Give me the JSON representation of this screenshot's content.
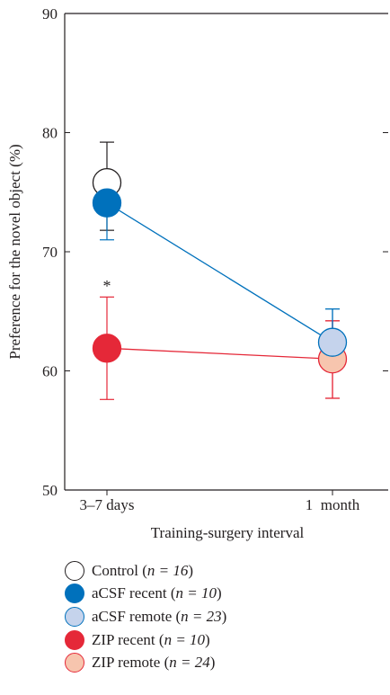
{
  "chart_data": {
    "type": "line",
    "xlabel": "Training-surgery interval",
    "ylabel": "Preference for the novel object (%)",
    "categories": [
      "3–7 days",
      "1  month"
    ],
    "ylim": [
      50,
      90
    ],
    "yticks": [
      50,
      60,
      70,
      80,
      90
    ],
    "annotation": "*",
    "series": [
      {
        "name": "Control",
        "n_label": "n = 16",
        "fill": "#ffffff",
        "stroke": "#231f20",
        "line": false,
        "values": [
          75.8,
          null
        ],
        "err_upper": [
          79.2,
          null
        ],
        "err_lower": [
          71.8,
          null
        ]
      },
      {
        "name": "aCSF recent",
        "n_label": "n = 10",
        "fill": "#0071bc",
        "stroke": "#0071bc",
        "line": true,
        "values": [
          74.1,
          62.4
        ],
        "err_upper": [
          76.3,
          65.2
        ],
        "err_lower": [
          71.0,
          60.0
        ]
      },
      {
        "name": "aCSF remote",
        "n_label": "n = 23",
        "fill": "#c5d3ec",
        "stroke": "#0071bc",
        "line": false,
        "values": [
          null,
          62.4
        ],
        "err_upper": [
          null,
          65.2
        ],
        "err_lower": [
          null,
          60.0
        ]
      },
      {
        "name": "ZIP recent",
        "n_label": "n = 10",
        "fill": "#e52838",
        "stroke": "#e52838",
        "line": true,
        "values": [
          61.9,
          61.0
        ],
        "err_upper": [
          66.2,
          64.2
        ],
        "err_lower": [
          57.6,
          57.7
        ]
      },
      {
        "name": "ZIP remote",
        "n_label": "n = 24",
        "fill": "#f7c5ae",
        "stroke": "#e52838",
        "line": false,
        "values": [
          null,
          61.0
        ],
        "err_upper": [
          null,
          64.2
        ],
        "err_lower": [
          null,
          57.7
        ]
      }
    ]
  },
  "legend": {
    "items": [
      {
        "name": "Control",
        "n_label": "n = 16"
      },
      {
        "name": "aCSF recent",
        "n_label": "n = 10"
      },
      {
        "name": "aCSF remote",
        "n_label": "n = 23"
      },
      {
        "name": "ZIP recent",
        "n_label": "n = 10"
      },
      {
        "name": "ZIP remote",
        "n_label": "n = 24"
      }
    ]
  }
}
